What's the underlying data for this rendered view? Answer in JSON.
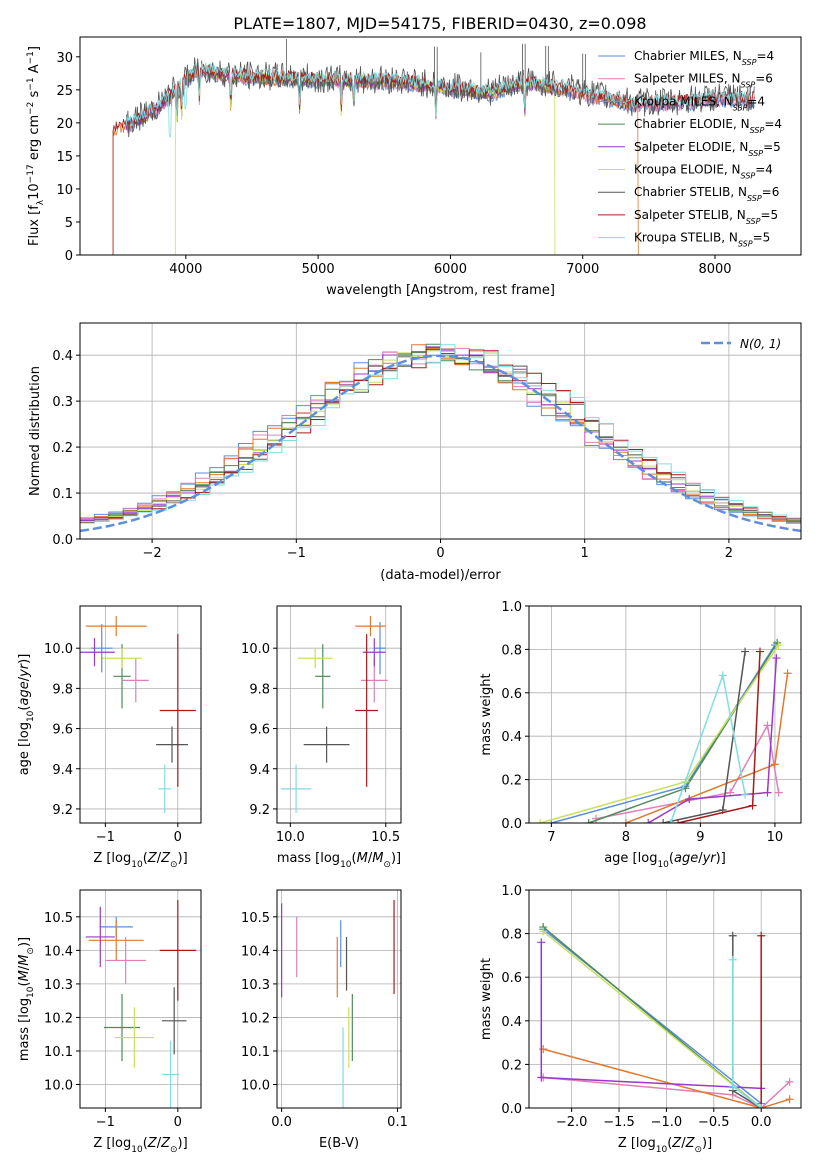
{
  "figure": {
    "title": "PLATE=1807, MJD=54175, FIBERID=0430, z=0.098"
  },
  "colors": {
    "chabrier_miles": "#5a8ee0",
    "salpeter_miles": "#e080b8",
    "kroupa_miles": "#e07a30",
    "chabrier_elodie": "#4f8a5a",
    "salpeter_elodie": "#9a38c8",
    "kroupa_elodie": "#c8e05a",
    "chabrier_stelib": "#555555",
    "salpeter_stelib": "#aa1a1a",
    "kroupa_stelib": "#80dde0",
    "gaussian": "#5f8fdc"
  },
  "legend": {
    "entries": [
      {
        "prefix": "Chabrier MILES, N",
        "sub": "SSP",
        "suffix": "=4",
        "color": "#5a8ee0"
      },
      {
        "prefix": "Salpeter MILES, N",
        "sub": "SSP",
        "suffix": "=6",
        "color": "#e080b8"
      },
      {
        "prefix": "Kroupa MILES, N",
        "sub": "SSP",
        "suffix": "=4",
        "color": "#e07a30"
      },
      {
        "prefix": "Chabrier ELODIE, N",
        "sub": "SSP",
        "suffix": "=4",
        "color": "#4f8a5a"
      },
      {
        "prefix": "Salpeter ELODIE, N",
        "sub": "SSP",
        "suffix": "=5",
        "color": "#9a38c8"
      },
      {
        "prefix": "Kroupa ELODIE, N",
        "sub": "SSP",
        "suffix": "=4",
        "color": "#c8e05a"
      },
      {
        "prefix": "Chabrier STELIB, N",
        "sub": "SSP",
        "suffix": "=6",
        "color": "#555555"
      },
      {
        "prefix": "Salpeter STELIB, N",
        "sub": "SSP",
        "suffix": "=5",
        "color": "#aa1a1a"
      },
      {
        "prefix": "Kroupa STELIB, N",
        "sub": "SSP",
        "suffix": "=5",
        "color": "#80dde0"
      }
    ],
    "gaussian_label": "N(0, 1)"
  },
  "chart_data": [
    {
      "id": "spectrum",
      "type": "line",
      "xlabel": "wavelength [Angstrom, rest frame]",
      "ylabel": "Flux [f_λ 10^-17 erg cm^-2 s^-1 A^-1]",
      "xlim": [
        3200,
        8650
      ],
      "ylim": [
        0,
        33
      ],
      "xticks": [
        4000,
        5000,
        6000,
        7000,
        8000
      ],
      "yticks": [
        0,
        5,
        10,
        15,
        20,
        25,
        30
      ],
      "continuum": [
        [
          3450,
          19.0
        ],
        [
          3600,
          20.0
        ],
        [
          3800,
          22.5
        ],
        [
          4000,
          26.5
        ],
        [
          4100,
          28.0
        ],
        [
          4400,
          27.0
        ],
        [
          5000,
          26.5
        ],
        [
          5600,
          26.3
        ],
        [
          5900,
          25.5
        ],
        [
          6300,
          24.5
        ],
        [
          6550,
          26.0
        ],
        [
          6800,
          25.5
        ],
        [
          7000,
          24.5
        ],
        [
          7400,
          22.8
        ],
        [
          7700,
          23.0
        ],
        [
          8000,
          23.6
        ],
        [
          8300,
          23.5
        ]
      ],
      "absorption_lines": [
        3934,
        3969,
        4102,
        4340,
        4861,
        5175,
        5270,
        5890,
        6563
      ],
      "cut_edges": [
        {
          "series": "Kroupa MILES",
          "x": 3540
        },
        {
          "series": "Kroupa ELODIE",
          "x": 3925
        },
        {
          "series": "Kroupa ELODIE",
          "x": 6790
        },
        {
          "series": "Kroupa MILES",
          "x": 7420
        }
      ]
    },
    {
      "id": "residuals",
      "type": "histogram",
      "xlabel": "(data-model)/error",
      "ylabel": "Normed distribution",
      "xlim": [
        -2.5,
        2.5
      ],
      "ylim": [
        0,
        0.47
      ],
      "xticks": [
        -2,
        -1,
        0,
        1,
        2
      ],
      "yticks": [
        0.0,
        0.1,
        0.2,
        0.3,
        0.4
      ],
      "bin_width": 0.1,
      "gaussian": {
        "mean": 0,
        "sigma": 1
      }
    },
    {
      "id": "age_vs_Z",
      "type": "errorbar",
      "xlabel": "Z [log10(Z/Z_sun)]",
      "ylabel": "age [log10(age/yr)]",
      "xlim": [
        -1.35,
        0.32
      ],
      "ylim": [
        9.13,
        10.21
      ],
      "xticks": [
        -1,
        0
      ],
      "yticks": [
        9.2,
        9.4,
        9.6,
        9.8,
        10.0
      ],
      "points": [
        {
          "series": "Chabrier MILES",
          "x": -1.05,
          "xerr": 0.15,
          "y": 10.0,
          "yerr": 0.12
        },
        {
          "series": "Salpeter MILES",
          "x": -0.58,
          "xerr": 0.18,
          "y": 9.84,
          "yerr": 0.11
        },
        {
          "series": "Kroupa MILES",
          "x": -0.85,
          "xerr": 0.42,
          "y": 10.11,
          "yerr": 0.05
        },
        {
          "series": "Chabrier ELODIE",
          "x": -0.77,
          "xerr": 0.12,
          "y": 9.86,
          "yerr": 0.16
        },
        {
          "series": "Salpeter ELODIE",
          "x": -1.15,
          "xerr": 0.28,
          "y": 9.98,
          "yerr": 0.07
        },
        {
          "series": "Kroupa ELODIE",
          "x": -0.77,
          "xerr": 0.27,
          "y": 9.95,
          "yerr": 0.05
        },
        {
          "series": "Chabrier STELIB",
          "x": -0.08,
          "xerr": 0.22,
          "y": 9.52,
          "yerr": 0.09
        },
        {
          "series": "Salpeter STELIB",
          "x": 0.0,
          "xerr": 0.25,
          "y": 9.69,
          "yerr": 0.38
        },
        {
          "series": "Kroupa STELIB",
          "x": -0.18,
          "xerr": 0.09,
          "y": 9.3,
          "yerr": 0.12
        }
      ]
    },
    {
      "id": "age_vs_mass",
      "type": "errorbar",
      "xlabel": "mass [log10(M/M_sun)]",
      "ylabel": "",
      "xlim": [
        9.93,
        10.58
      ],
      "ylim": [
        9.13,
        10.21
      ],
      "xticks": [
        10.0,
        10.5
      ],
      "yticks": [
        9.2,
        9.4,
        9.6,
        9.8,
        10.0
      ],
      "points": [
        {
          "series": "Chabrier MILES",
          "x": 10.47,
          "xerr": 0.03,
          "y": 10.0,
          "yerr": 0.13
        },
        {
          "series": "Salpeter MILES",
          "x": 10.44,
          "xerr": 0.07,
          "y": 9.84,
          "yerr": 0.11
        },
        {
          "series": "Kroupa MILES",
          "x": 10.42,
          "xerr": 0.08,
          "y": 10.11,
          "yerr": 0.05
        },
        {
          "series": "Chabrier ELODIE",
          "x": 10.17,
          "xerr": 0.04,
          "y": 9.86,
          "yerr": 0.16
        },
        {
          "series": "Salpeter ELODIE",
          "x": 10.44,
          "xerr": 0.06,
          "y": 9.98,
          "yerr": 0.07
        },
        {
          "series": "Kroupa ELODIE",
          "x": 10.13,
          "xerr": 0.09,
          "y": 9.95,
          "yerr": 0.05
        },
        {
          "series": "Chabrier STELIB",
          "x": 10.19,
          "xerr": 0.12,
          "y": 9.52,
          "yerr": 0.09
        },
        {
          "series": "Salpeter STELIB",
          "x": 10.4,
          "xerr": 0.06,
          "y": 9.69,
          "yerr": 0.38
        },
        {
          "series": "Kroupa STELIB",
          "x": 10.03,
          "xerr": 0.08,
          "y": 9.3,
          "yerr": 0.12
        }
      ]
    },
    {
      "id": "weights_vs_age",
      "type": "line",
      "xlabel": "age [log10(age/yr)]",
      "ylabel": "mass weight",
      "xlim": [
        6.7,
        10.35
      ],
      "ylim": [
        0,
        1.0
      ],
      "xticks": [
        7,
        8,
        9,
        10
      ],
      "yticks": [
        0.0,
        0.2,
        0.4,
        0.6,
        0.8,
        1.0
      ],
      "series": [
        {
          "name": "Chabrier MILES",
          "x": [
            7.0,
            8.8,
            10.0
          ],
          "y": [
            0.0,
            0.17,
            0.82
          ]
        },
        {
          "name": "Salpeter MILES",
          "x": [
            7.6,
            9.4,
            9.9,
            10.05
          ],
          "y": [
            0.02,
            0.14,
            0.45,
            0.14
          ]
        },
        {
          "name": "Kroupa MILES",
          "x": [
            8.0,
            10.0,
            10.17
          ],
          "y": [
            0.0,
            0.27,
            0.69
          ]
        },
        {
          "name": "Chabrier ELODIE",
          "x": [
            7.5,
            8.8,
            10.03
          ],
          "y": [
            0.0,
            0.16,
            0.83
          ]
        },
        {
          "name": "Salpeter ELODIE",
          "x": [
            8.3,
            8.85,
            9.9,
            10.02
          ],
          "y": [
            0.0,
            0.11,
            0.14,
            0.76
          ]
        },
        {
          "name": "Kroupa ELODIE",
          "x": [
            6.85,
            8.8,
            10.05
          ],
          "y": [
            0.0,
            0.19,
            0.82
          ]
        },
        {
          "name": "Chabrier STELIB",
          "x": [
            8.5,
            9.3,
            9.6
          ],
          "y": [
            0.0,
            0.06,
            0.79
          ]
        },
        {
          "name": "Salpeter STELIB",
          "x": [
            8.7,
            9.7,
            9.8
          ],
          "y": [
            0.0,
            0.08,
            0.79
          ]
        },
        {
          "name": "Kroupa STELIB",
          "x": [
            8.6,
            9.3,
            9.6
          ],
          "y": [
            0.0,
            0.68,
            0.13
          ]
        }
      ]
    },
    {
      "id": "mass_vs_Z",
      "type": "errorbar",
      "xlabel": "Z [log10(Z/Z_sun)]",
      "ylabel": "mass [log10(M/M_sun)]",
      "xlim": [
        -1.35,
        0.32
      ],
      "ylim": [
        9.93,
        10.58
      ],
      "xticks": [
        -1,
        0
      ],
      "yticks": [
        10.0,
        10.1,
        10.2,
        10.3,
        10.4,
        10.5
      ],
      "points": [
        {
          "series": "Chabrier MILES",
          "x": -0.85,
          "xerr": 0.23,
          "y": 10.47,
          "yerr": 0.03
        },
        {
          "series": "Salpeter MILES",
          "x": -0.72,
          "xerr": 0.28,
          "y": 10.37,
          "yerr": 0.07
        },
        {
          "series": "Kroupa MILES",
          "x": -0.85,
          "xerr": 0.38,
          "y": 10.43,
          "yerr": 0.06
        },
        {
          "series": "Chabrier ELODIE",
          "x": -0.77,
          "xerr": 0.25,
          "y": 10.17,
          "yerr": 0.1
        },
        {
          "series": "Salpeter ELODIE",
          "x": -1.07,
          "xerr": 0.2,
          "y": 10.44,
          "yerr": 0.09
        },
        {
          "series": "Kroupa ELODIE",
          "x": -0.6,
          "xerr": 0.27,
          "y": 10.14,
          "yerr": 0.09
        },
        {
          "series": "Chabrier STELIB",
          "x": -0.05,
          "xerr": 0.17,
          "y": 10.19,
          "yerr": 0.1
        },
        {
          "series": "Salpeter STELIB",
          "x": 0.0,
          "xerr": 0.25,
          "y": 10.4,
          "yerr": 0.15
        },
        {
          "series": "Kroupa STELIB",
          "x": -0.1,
          "xerr": 0.12,
          "y": 10.03,
          "yerr": 0.1
        }
      ]
    },
    {
      "id": "mass_vs_ebv",
      "type": "errorbar",
      "xlabel": "E(B-V)",
      "ylabel": "",
      "xlim": [
        -0.004,
        0.103
      ],
      "ylim": [
        9.93,
        10.58
      ],
      "xticks": [
        0.0,
        0.1
      ],
      "yticks": [
        10.0,
        10.1,
        10.2,
        10.3,
        10.4,
        10.5
      ],
      "points": [
        {
          "series": "Chabrier MILES",
          "x": 0.051,
          "y": 10.42,
          "yerr": 0.07
        },
        {
          "series": "Salpeter MILES",
          "x": 0.013,
          "y": 10.41,
          "yerr": 0.09
        },
        {
          "series": "Kroupa MILES",
          "x": 0.048,
          "y": 10.35,
          "yerr": 0.09
        },
        {
          "series": "Chabrier ELODIE",
          "x": 0.061,
          "y": 10.17,
          "yerr": 0.1
        },
        {
          "series": "Salpeter ELODIE",
          "x": 0.0,
          "y": 10.4,
          "yerr": 0.14
        },
        {
          "series": "Kroupa ELODIE",
          "x": 0.058,
          "y": 10.14,
          "yerr": 0.09
        },
        {
          "series": "Chabrier STELIB",
          "x": 0.056,
          "y": 10.36,
          "yerr": 0.08
        },
        {
          "series": "Salpeter STELIB",
          "x": 0.097,
          "y": 10.41,
          "yerr": 0.14
        },
        {
          "series": "Kroupa STELIB",
          "x": 0.053,
          "y": 10.05,
          "yerr": 0.12
        }
      ]
    },
    {
      "id": "weights_vs_Z",
      "type": "line",
      "xlabel": "Z [log10(Z/Z_sun)]",
      "ylabel": "mass weight",
      "xlim": [
        -2.45,
        0.42
      ],
      "ylim": [
        0,
        1.0
      ],
      "xticks": [
        -2.0,
        -1.5,
        -1.0,
        -0.5,
        0.0
      ],
      "yticks": [
        0.0,
        0.2,
        0.4,
        0.6,
        0.8,
        1.0
      ],
      "series": [
        {
          "name": "Chabrier MILES",
          "x": [
            -2.3,
            0.0
          ],
          "y": [
            0.82,
            0.02
          ]
        },
        {
          "name": "Salpeter MILES",
          "x": [
            -2.3,
            -0.3,
            0.0,
            0.3
          ],
          "y": [
            0.14,
            0.06,
            0.0,
            0.12
          ]
        },
        {
          "name": "Kroupa MILES",
          "x": [
            -2.3,
            0.0,
            0.3
          ],
          "y": [
            0.27,
            0.0,
            0.04
          ]
        },
        {
          "name": "Chabrier ELODIE",
          "x": [
            -2.3,
            0.0
          ],
          "y": [
            0.83,
            0.0
          ]
        },
        {
          "name": "Salpeter ELODIE",
          "x": [
            -2.32,
            -2.32,
            0.0
          ],
          "y": [
            0.76,
            0.14,
            0.09
          ]
        },
        {
          "name": "Kroupa ELODIE",
          "x": [
            -2.3,
            0.0
          ],
          "y": [
            0.81,
            0.0
          ]
        },
        {
          "name": "Chabrier STELIB",
          "x": [
            -0.3,
            -0.3,
            0.0
          ],
          "y": [
            0.79,
            0.08,
            0.0
          ]
        },
        {
          "name": "Salpeter STELIB",
          "x": [
            0.0,
            0.0
          ],
          "y": [
            0.79,
            0.0
          ]
        },
        {
          "name": "Kroupa STELIB",
          "x": [
            -0.3,
            -0.3,
            0.0
          ],
          "y": [
            0.68,
            0.1,
            0.0
          ]
        }
      ]
    }
  ]
}
